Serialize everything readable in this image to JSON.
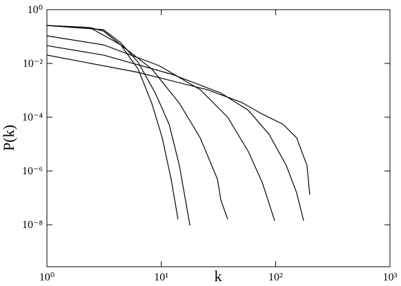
{
  "chart_data": {
    "type": "line",
    "x_label": "k",
    "y_label": "P(k)",
    "log_x": true,
    "log_y": true,
    "xlim": [
      1,
      1000
    ],
    "ylim": [
      2.75e-10,
      1
    ],
    "xticks": [
      {
        "value": 1,
        "label": "10⁰"
      },
      {
        "value": 10,
        "label": "10¹"
      },
      {
        "value": 100,
        "label": "10²"
      },
      {
        "value": 1000,
        "label": "10³"
      }
    ],
    "yticks": [
      {
        "value": 1,
        "label": "10⁰"
      },
      {
        "value": 0.01,
        "label": "10⁻²"
      },
      {
        "value": 0.0001,
        "label": "10⁻⁴"
      },
      {
        "value": 1e-06,
        "label": "10⁻⁶"
      },
      {
        "value": 1e-08,
        "label": "10⁻⁸"
      }
    ],
    "series": [
      {
        "color": "#000000",
        "x": [
          1,
          2.37,
          3.12,
          4.42,
          6.26,
          8.26,
          10.2,
          12.2,
          14.0
        ],
        "values": [
          0.257,
          0.215,
          0.16,
          0.049,
          0.00624,
          0.00033,
          1.7e-05,
          4.9e-07,
          1.6e-08
        ]
      },
      {
        "color": "#000000",
        "x": [
          1,
          3.12,
          4.42,
          6.26,
          8.86,
          11.7,
          14.4,
          17.8
        ],
        "values": [
          0.257,
          0.18,
          0.059,
          0.0112,
          0.00079,
          5.5e-05,
          1.6e-06,
          9.4e-09
        ]
      },
      {
        "color": "#000000",
        "x": [
          1,
          2.37,
          4.42,
          8.26,
          14.4,
          21.9,
          31.0,
          33.2,
          38.1
        ],
        "values": [
          0.257,
          0.215,
          0.049,
          0.00624,
          0.00033,
          1.7e-05,
          4.9e-07,
          8.4e-08,
          1.6e-08
        ]
      },
      {
        "color": "#000000",
        "x": [
          1,
          3.12,
          9.5,
          21.9,
          38.1,
          57.8,
          76.4,
          98.1
        ],
        "values": [
          0.106,
          0.049,
          0.0084,
          0.00106,
          0.0001,
          5.2e-06,
          3.7e-07,
          1.4e-08
        ]
      },
      {
        "color": "#000000",
        "x": [
          1,
          3.12,
          12.5,
          33.2,
          57.8,
          87.7,
          124,
          153,
          176
        ],
        "values": [
          0.046,
          0.0205,
          0.0039,
          0.00079,
          0.00018,
          2.3e-05,
          1.6e-06,
          1.5e-07,
          1.4e-08
        ]
      },
      {
        "color": "#000000",
        "x": [
          1,
          6.26,
          25.1,
          50.3,
          76.4,
          116,
          153,
          188,
          199
        ],
        "values": [
          0.0205,
          0.00466,
          0.00106,
          0.00036,
          0.00013,
          5.5e-05,
          1.7e-05,
          1.6e-06,
          1.3e-07
        ]
      }
    ]
  }
}
